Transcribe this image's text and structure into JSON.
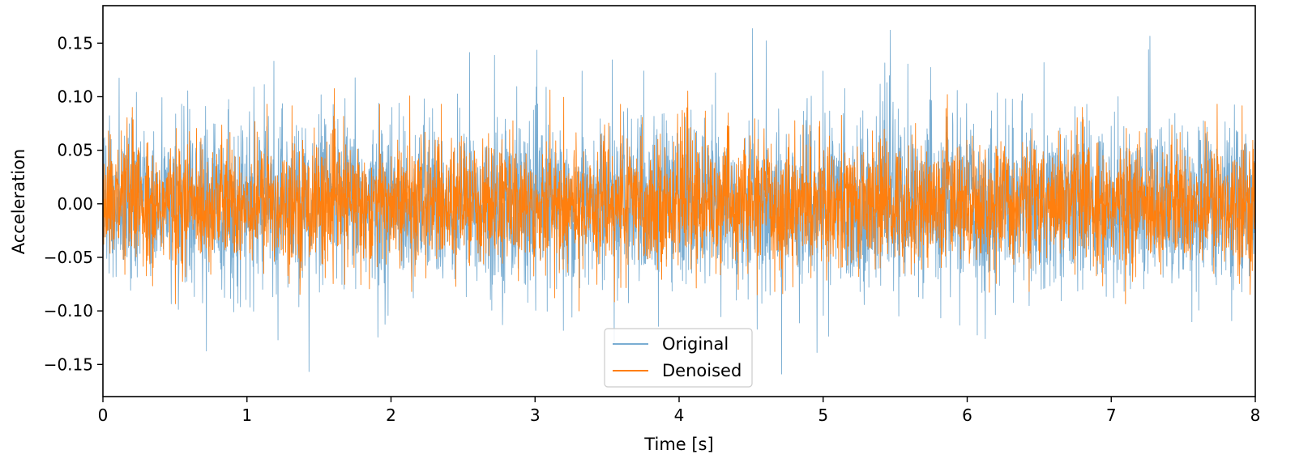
{
  "chart_data": {
    "type": "line",
    "title": "",
    "xlabel": "Time [s]",
    "ylabel": "Acceleration",
    "xlim": [
      0,
      8
    ],
    "ylim": [
      -0.18,
      0.185
    ],
    "x_ticks": [
      0,
      1,
      2,
      3,
      4,
      5,
      6,
      7,
      8
    ],
    "x_tick_labels": [
      "0",
      "1",
      "2",
      "3",
      "4",
      "5",
      "6",
      "7",
      "8"
    ],
    "y_ticks": [
      -0.15,
      -0.1,
      -0.05,
      0.0,
      0.05,
      0.1,
      0.15
    ],
    "y_tick_labels": [
      "−0.15",
      "−0.10",
      "−0.05",
      "0.00",
      "0.05",
      "0.10",
      "0.15"
    ],
    "grid": false,
    "legend_position": "bottom-center",
    "series": [
      {
        "name": "Original",
        "color": "#1f77b4",
        "opacity": 0.6,
        "description_stats": {
          "typical_amplitude": 0.06,
          "peak_max": 0.17,
          "peak_min": -0.165
        }
      },
      {
        "name": "Denoised",
        "color": "#ff7f0e",
        "opacity": 1.0,
        "description_stats": {
          "typical_amplitude": 0.045,
          "peak_max": 0.11,
          "peak_min": -0.1
        }
      }
    ],
    "legend": {
      "entries": [
        "Original",
        "Denoised"
      ]
    }
  }
}
